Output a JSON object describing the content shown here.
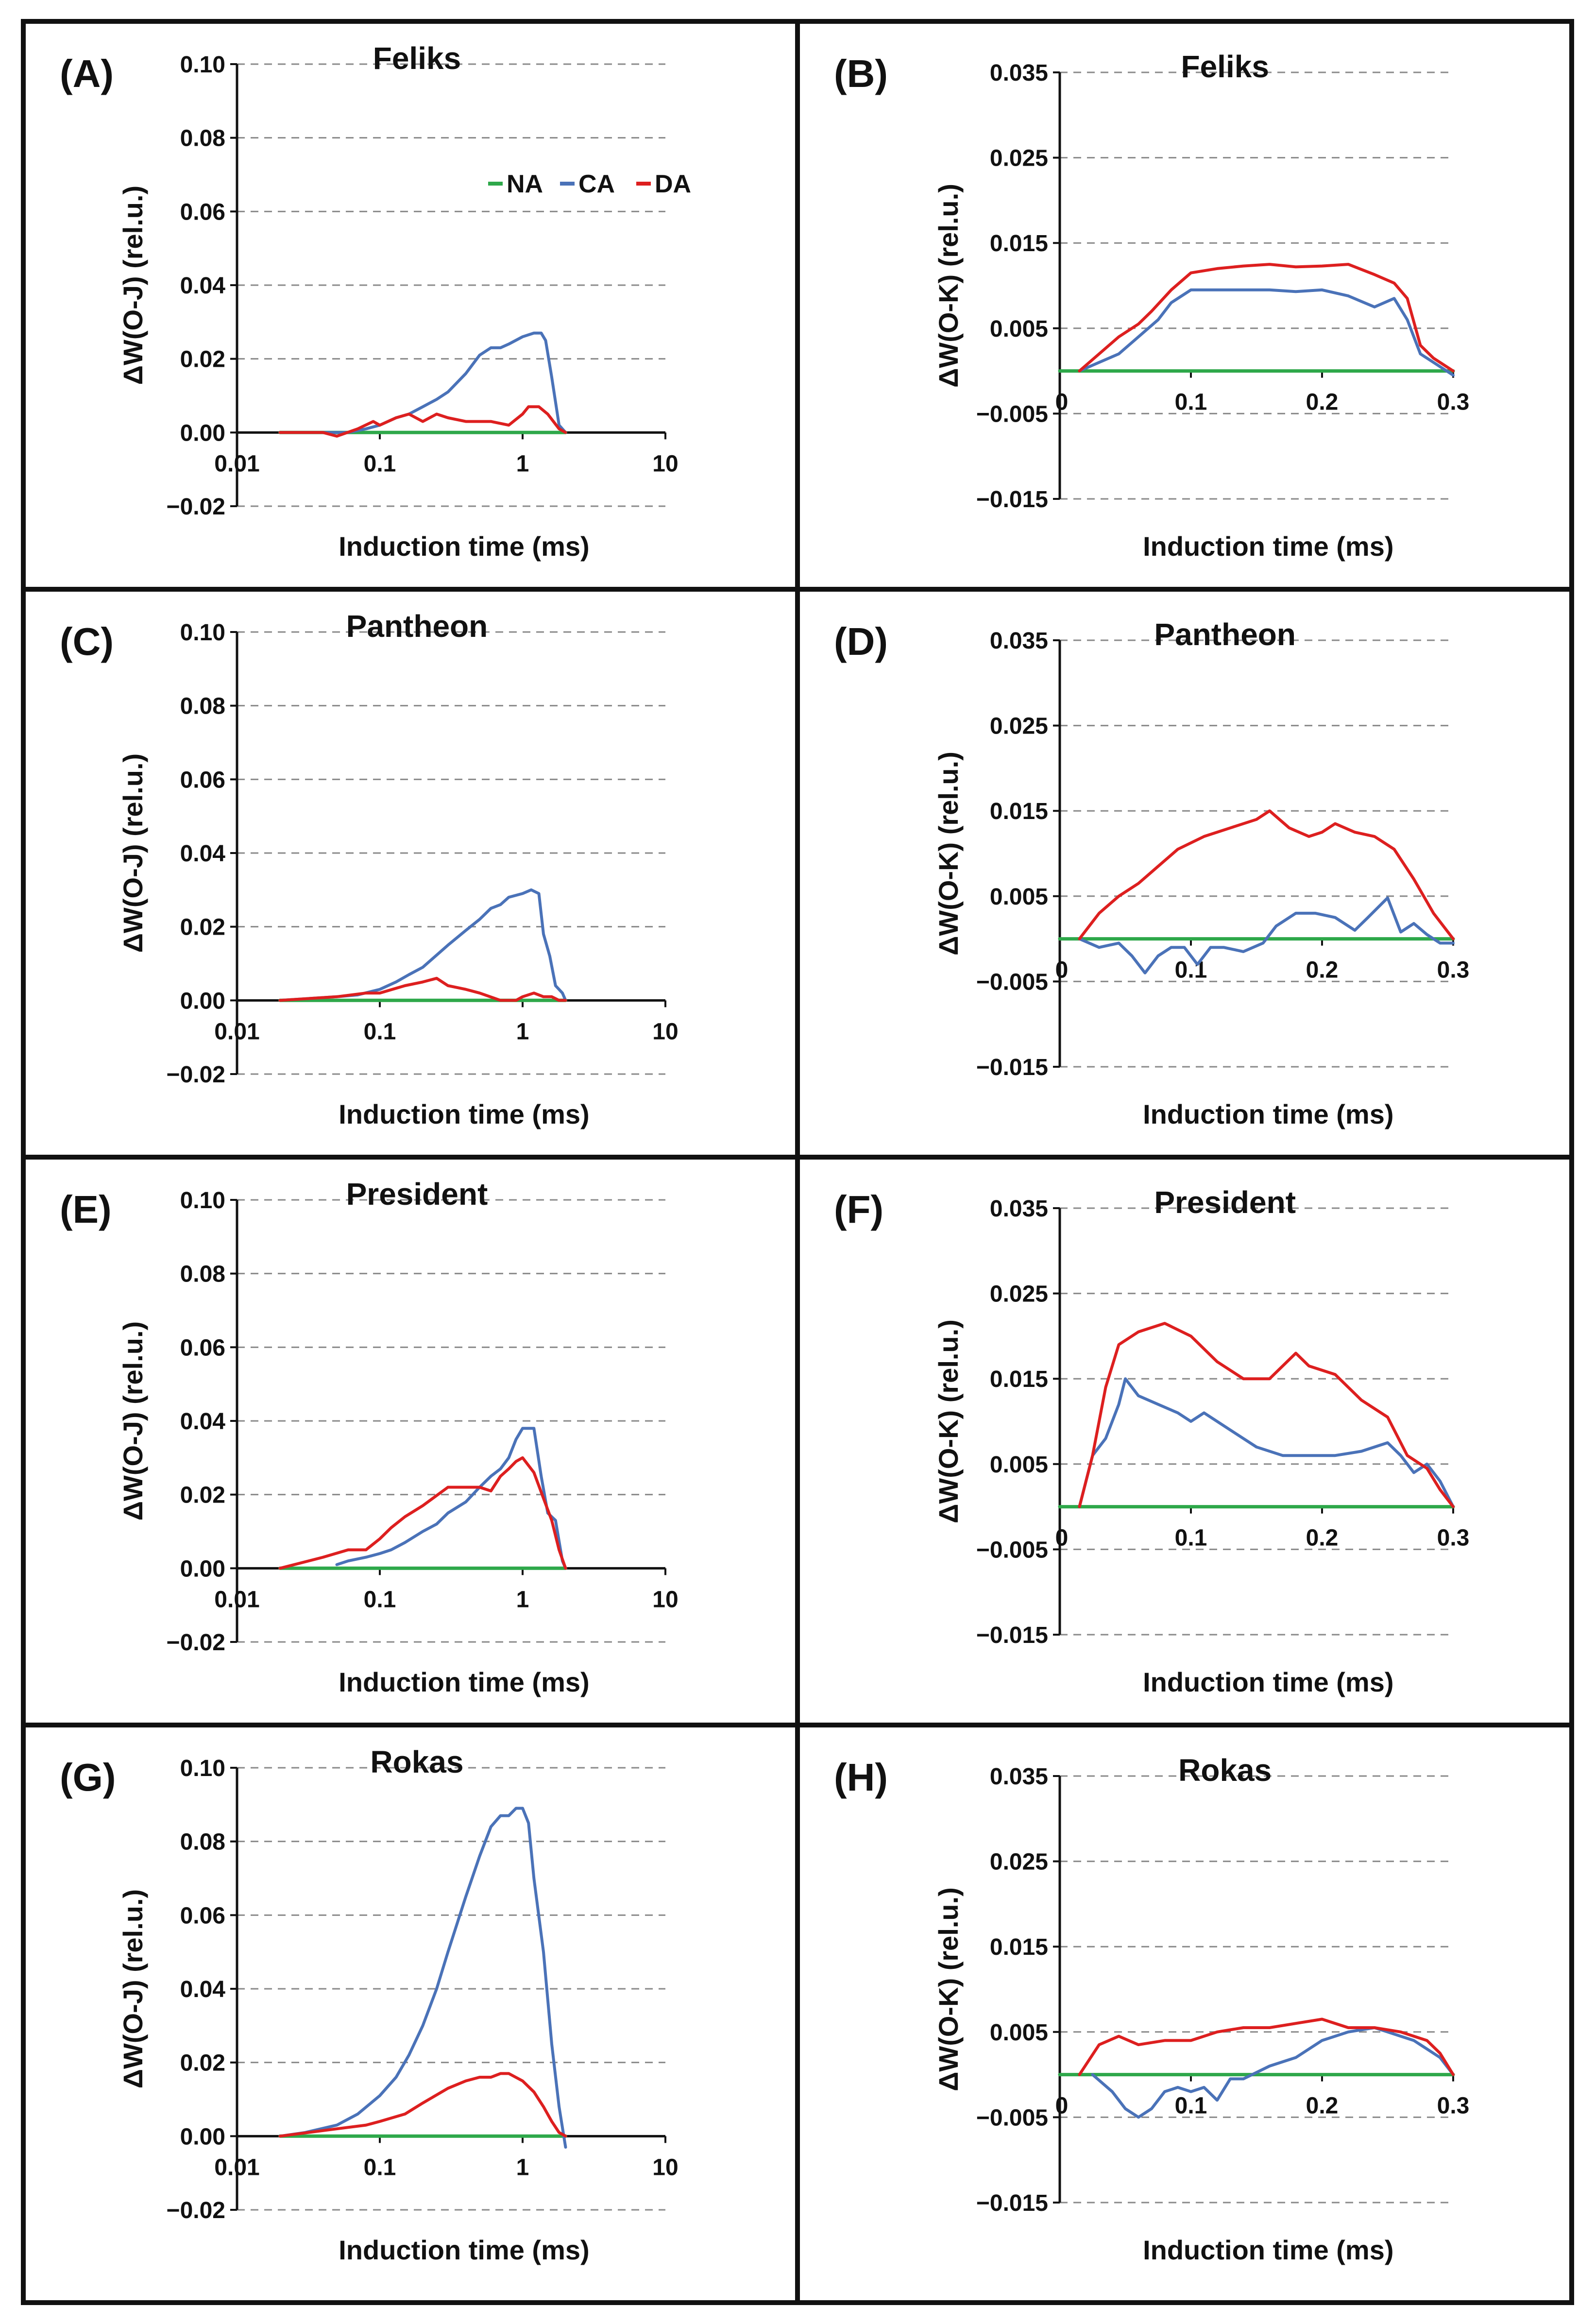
{
  "colors": {
    "NA": "#2ea84a",
    "CA": "#4a72b8",
    "DA": "#dd1f1f",
    "grid": "#8a8a8a",
    "axis": "#111111",
    "border": "#111111"
  },
  "legend": [
    {
      "name": "NA",
      "label": "NA"
    },
    {
      "name": "CA",
      "label": "CA"
    },
    {
      "name": "DA",
      "label": "DA"
    }
  ],
  "chart_data": [
    {
      "panel": "(A)",
      "type": "line",
      "title": "Feliks",
      "xlabel": "Induction time (ms)",
      "ylabel": "ΔW(O-J) (rel.u.)",
      "xscale": "log",
      "xlim": [
        0.01,
        10
      ],
      "ylim": [
        -0.02,
        0.1
      ],
      "xticks": [
        "0.01",
        "0.1",
        "1",
        "10"
      ],
      "yticks": [
        "0.10",
        "0.08",
        "0.06",
        "0.04",
        "0.02",
        "0.00",
        "−0.02"
      ],
      "series": [
        {
          "name": "NA",
          "x": [
            0.02,
            2.0
          ],
          "y": [
            0,
            0
          ]
        },
        {
          "name": "CA",
          "x": [
            0.02,
            0.04,
            0.06,
            0.08,
            0.1,
            0.13,
            0.16,
            0.2,
            0.25,
            0.3,
            0.4,
            0.5,
            0.6,
            0.7,
            0.8,
            1.0,
            1.2,
            1.35,
            1.45,
            1.6,
            1.8,
            2.0
          ],
          "y": [
            0,
            0,
            0,
            0.001,
            0.002,
            0.004,
            0.005,
            0.007,
            0.009,
            0.011,
            0.016,
            0.021,
            0.023,
            0.023,
            0.024,
            0.026,
            0.027,
            0.027,
            0.025,
            0.015,
            0.002,
            0
          ]
        },
        {
          "name": "DA",
          "x": [
            0.02,
            0.04,
            0.05,
            0.07,
            0.09,
            0.1,
            0.13,
            0.16,
            0.2,
            0.25,
            0.3,
            0.4,
            0.6,
            0.8,
            1.0,
            1.1,
            1.3,
            1.5,
            1.8,
            2.0
          ],
          "y": [
            0,
            0,
            -0.001,
            0.001,
            0.003,
            0.002,
            0.004,
            0.005,
            0.003,
            0.005,
            0.004,
            0.003,
            0.003,
            0.002,
            0.005,
            0.007,
            0.007,
            0.005,
            0.001,
            0
          ]
        }
      ]
    },
    {
      "panel": "(B)",
      "type": "line",
      "title": "Feliks",
      "xlabel": "Induction time (ms)",
      "ylabel": "ΔW(O-K) (rel.u.)",
      "xscale": "linear",
      "xlim": [
        0,
        0.3
      ],
      "ylim": [
        -0.015,
        0.035
      ],
      "xticks": [
        "0",
        "0.1",
        "0.2",
        "0.3"
      ],
      "yticks": [
        "0.035",
        "0.025",
        "0.015",
        "0.005",
        "−0.005",
        "−0.015"
      ],
      "series": [
        {
          "name": "NA",
          "x": [
            0,
            0.3
          ],
          "y": [
            0,
            0
          ]
        },
        {
          "name": "CA",
          "x": [
            0.015,
            0.03,
            0.045,
            0.06,
            0.075,
            0.085,
            0.1,
            0.12,
            0.14,
            0.16,
            0.18,
            0.2,
            0.22,
            0.24,
            0.255,
            0.265,
            0.275,
            0.285,
            0.3
          ],
          "y": [
            0,
            0.001,
            0.002,
            0.004,
            0.006,
            0.008,
            0.0095,
            0.0095,
            0.0095,
            0.0095,
            0.0093,
            0.0095,
            0.0088,
            0.0075,
            0.0085,
            0.006,
            0.002,
            0.001,
            -0.0005
          ]
        },
        {
          "name": "DA",
          "x": [
            0.015,
            0.03,
            0.045,
            0.06,
            0.07,
            0.085,
            0.1,
            0.12,
            0.14,
            0.16,
            0.18,
            0.2,
            0.22,
            0.24,
            0.255,
            0.265,
            0.275,
            0.285,
            0.3
          ],
          "y": [
            0,
            0.002,
            0.004,
            0.0055,
            0.007,
            0.0095,
            0.0115,
            0.012,
            0.0123,
            0.0125,
            0.0122,
            0.0123,
            0.0125,
            0.0113,
            0.0103,
            0.0085,
            0.003,
            0.0015,
            0
          ]
        }
      ]
    },
    {
      "panel": "(C)",
      "type": "line",
      "title": "Pantheon",
      "xlabel": "Induction time (ms)",
      "ylabel": "ΔW(O-J) (rel.u.)",
      "xscale": "log",
      "xlim": [
        0.01,
        10
      ],
      "ylim": [
        -0.02,
        0.1
      ],
      "xticks": [
        "0.01",
        "0.1",
        "1",
        "10"
      ],
      "yticks": [
        "0.10",
        "0.08",
        "0.06",
        "0.04",
        "0.02",
        "0.00",
        "−0.02"
      ],
      "series": [
        {
          "name": "NA",
          "x": [
            0.02,
            2.0
          ],
          "y": [
            0,
            0
          ]
        },
        {
          "name": "CA",
          "x": [
            0.02,
            0.05,
            0.07,
            0.1,
            0.13,
            0.16,
            0.2,
            0.3,
            0.4,
            0.5,
            0.6,
            0.7,
            0.8,
            1.0,
            1.15,
            1.3,
            1.4,
            1.55,
            1.7,
            1.9,
            2.0
          ],
          "y": [
            0,
            0.001,
            0.0015,
            0.003,
            0.005,
            0.007,
            0.009,
            0.015,
            0.019,
            0.022,
            0.025,
            0.026,
            0.028,
            0.029,
            0.03,
            0.029,
            0.018,
            0.012,
            0.004,
            0.002,
            0
          ]
        },
        {
          "name": "DA",
          "x": [
            0.02,
            0.05,
            0.08,
            0.1,
            0.15,
            0.2,
            0.25,
            0.3,
            0.4,
            0.5,
            0.7,
            0.9,
            1.0,
            1.2,
            1.4,
            1.6,
            1.8,
            2.0
          ],
          "y": [
            0,
            0.001,
            0.002,
            0.002,
            0.004,
            0.005,
            0.006,
            0.004,
            0.003,
            0.002,
            0,
            0,
            0.001,
            0.002,
            0.001,
            0.001,
            0,
            0
          ]
        }
      ]
    },
    {
      "panel": "(D)",
      "type": "line",
      "title": "Pantheon",
      "xlabel": "Induction time (ms)",
      "ylabel": "ΔW(O-K) (rel.u.)",
      "xscale": "linear",
      "xlim": [
        0,
        0.3
      ],
      "ylim": [
        -0.015,
        0.035
      ],
      "xticks": [
        "0",
        "0.1",
        "0.2",
        "0.3"
      ],
      "yticks": [
        "0.035",
        "0.025",
        "0.015",
        "0.005",
        "−0.005",
        "−0.015"
      ],
      "series": [
        {
          "name": "NA",
          "x": [
            0,
            0.3
          ],
          "y": [
            0,
            0
          ]
        },
        {
          "name": "CA",
          "x": [
            0.015,
            0.03,
            0.045,
            0.055,
            0.065,
            0.075,
            0.085,
            0.095,
            0.105,
            0.115,
            0.125,
            0.14,
            0.155,
            0.165,
            0.18,
            0.195,
            0.21,
            0.225,
            0.235,
            0.25,
            0.26,
            0.27,
            0.28,
            0.29,
            0.3
          ],
          "y": [
            0,
            -0.001,
            -0.0005,
            -0.002,
            -0.004,
            -0.002,
            -0.001,
            -0.001,
            -0.003,
            -0.001,
            -0.001,
            -0.0015,
            -0.0005,
            0.0015,
            0.003,
            0.003,
            0.0025,
            0.001,
            0.0025,
            0.0048,
            0.0008,
            0.0018,
            0.0005,
            -0.0005,
            -0.0005
          ]
        },
        {
          "name": "DA",
          "x": [
            0.015,
            0.03,
            0.045,
            0.06,
            0.075,
            0.09,
            0.11,
            0.13,
            0.15,
            0.16,
            0.175,
            0.19,
            0.2,
            0.21,
            0.225,
            0.24,
            0.255,
            0.27,
            0.285,
            0.3
          ],
          "y": [
            0,
            0.003,
            0.005,
            0.0065,
            0.0085,
            0.0105,
            0.012,
            0.013,
            0.014,
            0.015,
            0.013,
            0.012,
            0.0125,
            0.0135,
            0.0125,
            0.012,
            0.0105,
            0.007,
            0.003,
            0
          ]
        }
      ]
    },
    {
      "panel": "(E)",
      "type": "line",
      "title": "President",
      "xlabel": "Induction time (ms)",
      "ylabel": "ΔW(O-J) (rel.u.)",
      "xscale": "log",
      "xlim": [
        0.01,
        10
      ],
      "ylim": [
        -0.02,
        0.1
      ],
      "xticks": [
        "0.01",
        "0.1",
        "1",
        "10"
      ],
      "yticks": [
        "0.10",
        "0.08",
        "0.06",
        "0.04",
        "0.02",
        "0.00",
        "−0.02"
      ],
      "series": [
        {
          "name": "NA",
          "x": [
            0.02,
            2.0
          ],
          "y": [
            0,
            0
          ]
        },
        {
          "name": "CA",
          "x": [
            0.05,
            0.06,
            0.08,
            0.1,
            0.12,
            0.15,
            0.2,
            0.25,
            0.3,
            0.4,
            0.5,
            0.6,
            0.7,
            0.8,
            0.9,
            1.0,
            1.2,
            1.35,
            1.5,
            1.7,
            1.9,
            2.0
          ],
          "y": [
            0.001,
            0.002,
            0.003,
            0.004,
            0.005,
            0.007,
            0.01,
            0.012,
            0.015,
            0.018,
            0.022,
            0.025,
            0.027,
            0.03,
            0.035,
            0.038,
            0.038,
            0.025,
            0.015,
            0.013,
            0.002,
            0
          ]
        },
        {
          "name": "DA",
          "x": [
            0.02,
            0.04,
            0.06,
            0.08,
            0.1,
            0.12,
            0.15,
            0.2,
            0.3,
            0.4,
            0.5,
            0.6,
            0.7,
            0.8,
            0.9,
            1.0,
            1.2,
            1.4,
            1.6,
            1.8,
            2.0
          ],
          "y": [
            0,
            0.003,
            0.005,
            0.005,
            0.008,
            0.011,
            0.014,
            0.017,
            0.022,
            0.022,
            0.022,
            0.021,
            0.025,
            0.027,
            0.029,
            0.03,
            0.026,
            0.019,
            0.013,
            0.005,
            0
          ]
        }
      ]
    },
    {
      "panel": "(F)",
      "type": "line",
      "title": "President",
      "xlabel": "Induction time (ms)",
      "ylabel": "ΔW(O-K) (rel.u.)",
      "xscale": "linear",
      "xlim": [
        0,
        0.3
      ],
      "ylim": [
        -0.015,
        0.035
      ],
      "xticks": [
        "0",
        "0.1",
        "0.2",
        "0.3"
      ],
      "yticks": [
        "0.035",
        "0.025",
        "0.015",
        "0.005",
        "−0.005",
        "−0.015"
      ],
      "series": [
        {
          "name": "NA",
          "x": [
            0,
            0.3
          ],
          "y": [
            0,
            0
          ]
        },
        {
          "name": "CA",
          "x": [
            0.015,
            0.025,
            0.035,
            0.045,
            0.05,
            0.06,
            0.075,
            0.09,
            0.1,
            0.11,
            0.13,
            0.15,
            0.17,
            0.19,
            0.21,
            0.23,
            0.25,
            0.26,
            0.27,
            0.28,
            0.29,
            0.3
          ],
          "y": [
            0,
            0.006,
            0.008,
            0.012,
            0.015,
            0.013,
            0.012,
            0.011,
            0.01,
            0.011,
            0.009,
            0.007,
            0.006,
            0.006,
            0.006,
            0.0065,
            0.0075,
            0.006,
            0.004,
            0.005,
            0.003,
            0
          ]
        },
        {
          "name": "DA",
          "x": [
            0.015,
            0.025,
            0.035,
            0.045,
            0.06,
            0.08,
            0.1,
            0.12,
            0.14,
            0.16,
            0.18,
            0.19,
            0.21,
            0.23,
            0.25,
            0.265,
            0.28,
            0.29,
            0.3
          ],
          "y": [
            0,
            0.006,
            0.014,
            0.019,
            0.0205,
            0.0215,
            0.02,
            0.017,
            0.015,
            0.015,
            0.018,
            0.0165,
            0.0155,
            0.0125,
            0.0105,
            0.006,
            0.0045,
            0.002,
            0
          ]
        }
      ]
    },
    {
      "panel": "(G)",
      "type": "line",
      "title": "Rokas",
      "xlabel": "Induction time (ms)",
      "ylabel": "ΔW(O-J) (rel.u.)",
      "xscale": "log",
      "xlim": [
        0.01,
        10
      ],
      "ylim": [
        -0.02,
        0.1
      ],
      "xticks": [
        "0.01",
        "0.1",
        "1",
        "10"
      ],
      "yticks": [
        "0.10",
        "0.08",
        "0.06",
        "0.04",
        "0.02",
        "0.00",
        "−0.02"
      ],
      "series": [
        {
          "name": "NA",
          "x": [
            0.02,
            2.0
          ],
          "y": [
            0,
            0
          ]
        },
        {
          "name": "CA",
          "x": [
            0.02,
            0.03,
            0.05,
            0.07,
            0.1,
            0.13,
            0.16,
            0.2,
            0.25,
            0.3,
            0.4,
            0.5,
            0.6,
            0.7,
            0.8,
            0.9,
            1.0,
            1.1,
            1.2,
            1.4,
            1.6,
            1.8,
            2.0
          ],
          "y": [
            0,
            0.001,
            0.003,
            0.006,
            0.011,
            0.016,
            0.022,
            0.03,
            0.04,
            0.05,
            0.065,
            0.076,
            0.084,
            0.087,
            0.087,
            0.089,
            0.089,
            0.085,
            0.07,
            0.05,
            0.025,
            0.008,
            -0.003
          ]
        },
        {
          "name": "DA",
          "x": [
            0.02,
            0.05,
            0.08,
            0.1,
            0.15,
            0.2,
            0.3,
            0.4,
            0.5,
            0.6,
            0.7,
            0.8,
            1.0,
            1.2,
            1.4,
            1.6,
            1.8,
            2.0
          ],
          "y": [
            0,
            0.002,
            0.003,
            0.004,
            0.006,
            0.009,
            0.013,
            0.015,
            0.016,
            0.016,
            0.017,
            0.017,
            0.015,
            0.012,
            0.008,
            0.004,
            0.001,
            0
          ]
        }
      ]
    },
    {
      "panel": "(H)",
      "type": "line",
      "title": "Rokas",
      "xlabel": "Induction time (ms)",
      "ylabel": "ΔW(O-K) (rel.u.)",
      "xscale": "linear",
      "xlim": [
        0,
        0.3
      ],
      "ylim": [
        -0.015,
        0.035
      ],
      "xticks": [
        "0",
        "0.1",
        "0.2",
        "0.3"
      ],
      "yticks": [
        "0.035",
        "0.025",
        "0.015",
        "0.005",
        "−0.005",
        "−0.015"
      ],
      "series": [
        {
          "name": "NA",
          "x": [
            0,
            0.3
          ],
          "y": [
            0,
            0
          ]
        },
        {
          "name": "CA",
          "x": [
            0.025,
            0.04,
            0.05,
            0.06,
            0.07,
            0.08,
            0.09,
            0.1,
            0.11,
            0.12,
            0.13,
            0.14,
            0.16,
            0.18,
            0.2,
            0.22,
            0.24,
            0.25,
            0.26,
            0.27,
            0.28,
            0.29,
            0.3
          ],
          "y": [
            0,
            -0.002,
            -0.004,
            -0.005,
            -0.004,
            -0.002,
            -0.0015,
            -0.002,
            -0.0015,
            -0.003,
            -0.0005,
            -0.0005,
            0.001,
            0.002,
            0.004,
            0.005,
            0.0055,
            0.005,
            0.0045,
            0.004,
            0.003,
            0.002,
            0
          ]
        },
        {
          "name": "DA",
          "x": [
            0.015,
            0.03,
            0.045,
            0.06,
            0.08,
            0.1,
            0.12,
            0.14,
            0.16,
            0.18,
            0.2,
            0.22,
            0.24,
            0.26,
            0.28,
            0.29,
            0.3
          ],
          "y": [
            0,
            0.0035,
            0.0045,
            0.0035,
            0.004,
            0.004,
            0.005,
            0.0055,
            0.0055,
            0.006,
            0.0065,
            0.0055,
            0.0055,
            0.005,
            0.004,
            0.0025,
            0
          ]
        }
      ]
    }
  ]
}
